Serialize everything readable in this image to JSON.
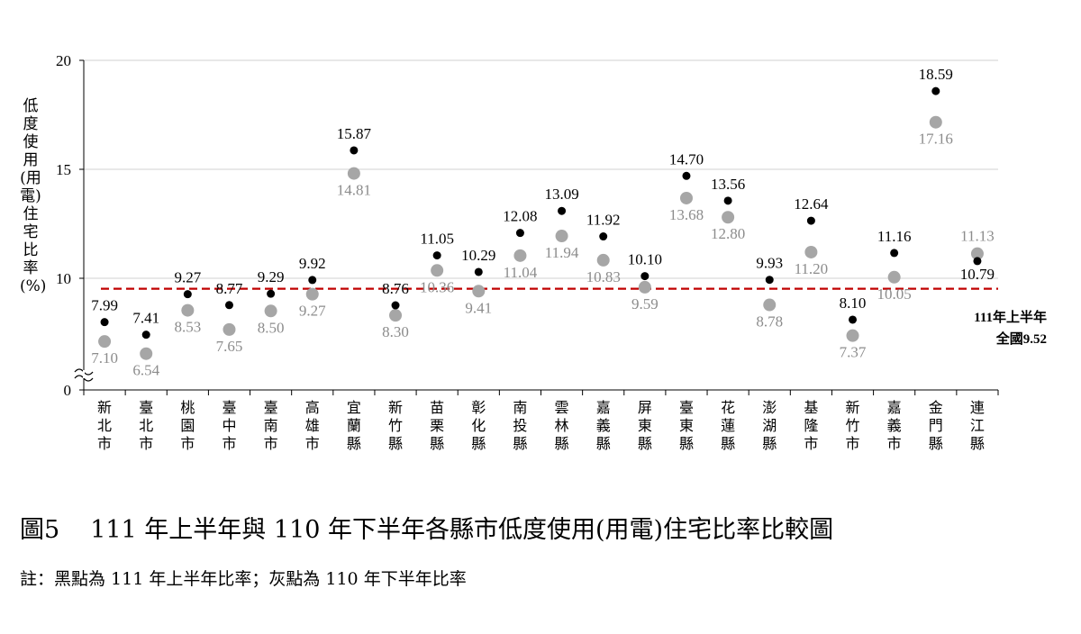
{
  "chart_data": {
    "type": "scatter",
    "ylabel": "低度使用(用電)住宅比率(%)",
    "yticks": [
      "0",
      "10",
      "15",
      "20"
    ],
    "ylim_display": [
      7,
      20
    ],
    "axis_break": true,
    "categories": [
      "新北市",
      "臺北市",
      "桃園市",
      "臺中市",
      "臺南市",
      "高雄市",
      "宜蘭縣",
      "新竹縣",
      "苗栗縣",
      "彰化縣",
      "南投縣",
      "雲林縣",
      "嘉義縣",
      "屏東縣",
      "臺東縣",
      "花蓮縣",
      "澎湖縣",
      "基隆市",
      "新竹市",
      "嘉義市",
      "金門縣",
      "連江縣"
    ],
    "series": [
      {
        "values": [
          7.99,
          7.41,
          9.27,
          8.77,
          9.29,
          9.92,
          15.87,
          8.76,
          11.05,
          10.29,
          12.08,
          13.09,
          11.92,
          10.1,
          14.7,
          13.56,
          9.93,
          12.64,
          8.1,
          11.16,
          18.59,
          10.79
        ],
        "labels": [
          "7.99",
          "7.41",
          "9.27",
          "8.77",
          "9.29",
          "9.92",
          "15.87",
          "8.76",
          "11.05",
          "10.29",
          "12.08",
          "13.09",
          "11.92",
          "10.10",
          "14.70",
          "13.56",
          "9.93",
          "12.64",
          "8.10",
          "11.16",
          "18.59",
          "10.79"
        ],
        "color": "#000000"
      },
      {
        "values": [
          7.1,
          6.54,
          8.53,
          7.65,
          8.5,
          9.27,
          14.81,
          8.3,
          10.36,
          9.41,
          11.04,
          11.94,
          10.83,
          9.59,
          13.68,
          12.8,
          8.78,
          11.2,
          7.37,
          10.05,
          17.16,
          11.13
        ],
        "labels": [
          "7.10",
          "6.54",
          "8.53",
          "7.65",
          "8.50",
          "9.27",
          "14.81",
          "8.30",
          "10.36",
          "9.41",
          "11.04",
          "11.94",
          "10.83",
          "9.59",
          "13.68",
          "12.80",
          "8.78",
          "11.20",
          "7.37",
          "10.05",
          "17.16",
          "11.13"
        ],
        "color": "#a6a6a6"
      }
    ],
    "reference_line": {
      "value": 9.52,
      "color": "#c00000",
      "label_line1": "111年上半年",
      "label_line2": "全國9.52"
    },
    "grid": true
  },
  "caption": {
    "number": "圖5",
    "text": "111 年上半年與 110 年下半年各縣市低度使用(用電)住宅比率比較圖"
  },
  "note": "註：黑點為 111 年上半年比率；灰點為 110 年下半年比率"
}
